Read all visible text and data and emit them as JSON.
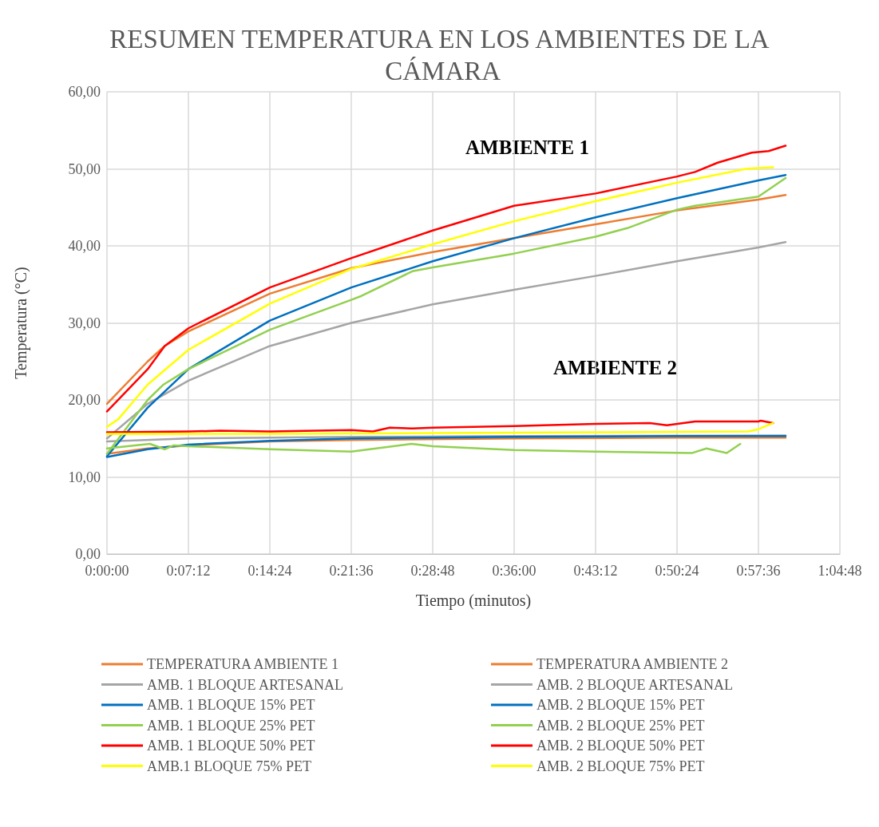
{
  "chart_data": {
    "type": "line",
    "title": "RESUMEN TEMPERATURA EN LOS AMBIENTES DE LA CÁMARA",
    "xlabel": "Tiempo (minutos)",
    "ylabel": "Temperatura (°C)",
    "annotations": [
      "AMBIENTE 1",
      "AMBIENTE 2"
    ],
    "xlim": [
      0,
      64.8
    ],
    "xticks": [
      {
        "value": 0,
        "label": "0:00:00"
      },
      {
        "value": 7.2,
        "label": "0:07:12"
      },
      {
        "value": 14.4,
        "label": "0:14:24"
      },
      {
        "value": 21.6,
        "label": "0:21:36"
      },
      {
        "value": 28.8,
        "label": "0:28:48"
      },
      {
        "value": 36,
        "label": "0:36:00"
      },
      {
        "value": 43.2,
        "label": "0:43:12"
      },
      {
        "value": 50.4,
        "label": "0:50:24"
      },
      {
        "value": 57.6,
        "label": "0:57:36"
      },
      {
        "value": 64.8,
        "label": "1:04:48"
      }
    ],
    "ylim": [
      0,
      60
    ],
    "yticks": [
      {
        "value": 0,
        "label": "0,00"
      },
      {
        "value": 10,
        "label": "10,00"
      },
      {
        "value": 20,
        "label": "20,00"
      },
      {
        "value": 30,
        "label": "30,00"
      },
      {
        "value": 40,
        "label": "40,00"
      },
      {
        "value": 50,
        "label": "50,00"
      },
      {
        "value": 60,
        "label": "60,00"
      }
    ],
    "grid": true,
    "legend": "bottom",
    "marker": "none",
    "line_style": "solid",
    "series": [
      {
        "name": "TEMPERATURA AMBIENTE 1",
        "color": "#ed7d31",
        "x": [
          0,
          3.6,
          5.1,
          7.2,
          14.4,
          21.6,
          28.8,
          36,
          43.2,
          50.4,
          57.6,
          60
        ],
        "values": [
          19.5,
          25,
          27,
          28.9,
          33.8,
          37.1,
          39.2,
          41,
          42.8,
          44.6,
          46,
          46.6
        ]
      },
      {
        "name": "TEMPERATURA AMBIENTE 2",
        "color": "#ed7d31",
        "x": [
          0,
          3.6,
          7.2,
          14.4,
          21.6,
          36,
          50.4,
          60
        ],
        "values": [
          13,
          13.7,
          14.1,
          14.6,
          14.8,
          15,
          15.1,
          15.1
        ]
      },
      {
        "name": "AMB. 1 BLOQUE ARTESANAL",
        "color": "#a5a5a5",
        "x": [
          0,
          3.6,
          7.2,
          14.4,
          21.6,
          28.8,
          36,
          43.2,
          50.4,
          57.6,
          60
        ],
        "values": [
          15,
          19.5,
          22.5,
          27,
          30,
          32.4,
          34.3,
          36.1,
          38,
          39.8,
          40.5
        ]
      },
      {
        "name": "AMB. 2 BLOQUE ARTESANAL",
        "color": "#a5a5a5",
        "x": [
          0,
          7.2,
          14.4,
          21.6,
          36,
          60
        ],
        "values": [
          14.6,
          15,
          15.1,
          15.2,
          15.3,
          15.4
        ]
      },
      {
        "name": "AMB. 1 BLOQUE 15% PET",
        "color": "#0070c0",
        "x": [
          0,
          3.6,
          7.2,
          14.4,
          21.6,
          28.8,
          36,
          43.2,
          50.4,
          57.6,
          60
        ],
        "values": [
          12.7,
          19,
          24,
          30.3,
          34.6,
          38,
          41,
          43.7,
          46.2,
          48.5,
          49.2
        ]
      },
      {
        "name": "AMB. 2 BLOQUE 15% PET",
        "color": "#0070c0",
        "x": [
          0,
          3.6,
          7.2,
          14.4,
          21.6,
          28.8,
          36,
          50.4,
          60
        ],
        "values": [
          12.6,
          13.6,
          14.2,
          14.7,
          15,
          15.1,
          15.2,
          15.3,
          15.3
        ]
      },
      {
        "name": "AMB. 1 BLOQUE 25% PET",
        "color": "#92d050",
        "x": [
          0,
          3.6,
          5,
          7.2,
          14.4,
          21.6,
          22.5,
          27,
          28.8,
          36,
          43.2,
          46,
          50.4,
          52,
          57.6,
          60
        ],
        "values": [
          13,
          20,
          22,
          24,
          29.1,
          33,
          33.5,
          36.7,
          37.2,
          39,
          41.2,
          42.3,
          44.7,
          45.2,
          46.4,
          48.8
        ]
      },
      {
        "name": "AMB. 2 BLOQUE 25% PET",
        "color": "#92d050",
        "x": [
          0,
          3.8,
          5.1,
          5.9,
          7.2,
          14.4,
          21.6,
          26.9,
          28.8,
          36,
          43.2,
          51.7,
          53,
          54.8,
          56
        ],
        "values": [
          13.7,
          14.3,
          13.6,
          14.1,
          14,
          13.6,
          13.3,
          14.3,
          14,
          13.5,
          13.3,
          13.1,
          13.7,
          13.1,
          14.3
        ]
      },
      {
        "name": "AMB. 1 BLOQUE 50% PET",
        "color": "#ff0000",
        "x": [
          0,
          3.6,
          5.1,
          7.2,
          14.4,
          21.6,
          28.8,
          36,
          43.2,
          50.4,
          52,
          54,
          57,
          58.5,
          60
        ],
        "values": [
          18.5,
          24,
          27,
          29.3,
          34.6,
          38.4,
          42,
          45.2,
          46.8,
          49,
          49.6,
          50.8,
          52.1,
          52.3,
          53
        ]
      },
      {
        "name": "AMB. 2 BLOQUE 50% PET",
        "color": "#ff0000",
        "x": [
          0,
          7.2,
          10,
          14.4,
          21.6,
          23.5,
          25,
          27,
          28.8,
          36,
          43.2,
          48,
          49.5,
          52,
          57.6,
          57.8,
          58.9
        ],
        "values": [
          15.8,
          15.9,
          16,
          15.9,
          16.1,
          15.9,
          16.4,
          16.3,
          16.4,
          16.6,
          16.9,
          17,
          16.7,
          17.2,
          17.2,
          17.3,
          17
        ]
      },
      {
        "name": "AMB.1 BLOQUE 75% PET",
        "color": "#ffff00",
        "x": [
          0,
          1,
          3.6,
          7.2,
          14.4,
          21.6,
          28.8,
          36,
          43.2,
          50.4,
          56.5,
          57.6,
          58.9
        ],
        "values": [
          16.5,
          17.5,
          22,
          26.5,
          32.5,
          37,
          40.2,
          43.2,
          45.8,
          48.2,
          50,
          50.1,
          50.2
        ]
      },
      {
        "name": "AMB. 2 BLOQUE 75% PET",
        "color": "#ffff00",
        "x": [
          0,
          14.4,
          28.8,
          43.2,
          56.7,
          57.6,
          58.9
        ],
        "values": [
          15.6,
          15.6,
          15.7,
          15.8,
          15.9,
          16.2,
          17
        ]
      }
    ]
  }
}
